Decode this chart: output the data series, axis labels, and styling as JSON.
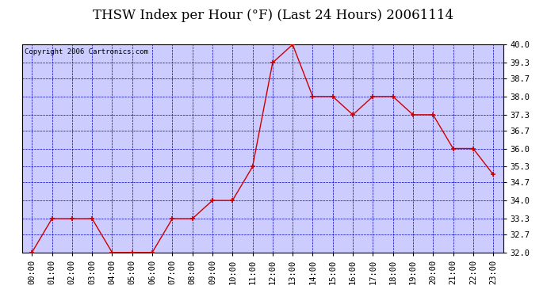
{
  "title": "THSW Index per Hour (°F) (Last 24 Hours) 20061114",
  "copyright": "Copyright 2006 Cartronics.com",
  "hours": [
    "00:00",
    "01:00",
    "02:00",
    "03:00",
    "04:00",
    "05:00",
    "06:00",
    "07:00",
    "08:00",
    "09:00",
    "10:00",
    "11:00",
    "12:00",
    "13:00",
    "14:00",
    "15:00",
    "16:00",
    "17:00",
    "18:00",
    "19:00",
    "20:00",
    "21:00",
    "22:00",
    "23:00"
  ],
  "values": [
    32.0,
    33.3,
    33.3,
    33.3,
    32.0,
    32.0,
    32.0,
    33.3,
    33.3,
    34.0,
    34.0,
    35.3,
    39.3,
    40.0,
    38.0,
    38.0,
    37.3,
    38.0,
    38.0,
    37.3,
    37.3,
    36.0,
    36.0,
    35.0
  ],
  "line_color": "#cc0000",
  "marker": "+",
  "marker_size": 5,
  "marker_color": "#cc0000",
  "bg_color": "#ffffff",
  "plot_bg_color": "#ccccff",
  "grid_color": "#0000cc",
  "border_color": "#000000",
  "title_color": "#000000",
  "ylim": [
    32.0,
    40.0
  ],
  "yticks": [
    32.0,
    32.7,
    33.3,
    34.0,
    34.7,
    35.3,
    36.0,
    36.7,
    37.3,
    38.0,
    38.7,
    39.3,
    40.0
  ],
  "copyright_fontsize": 6.5,
  "title_fontsize": 12,
  "tick_fontsize": 7.5
}
